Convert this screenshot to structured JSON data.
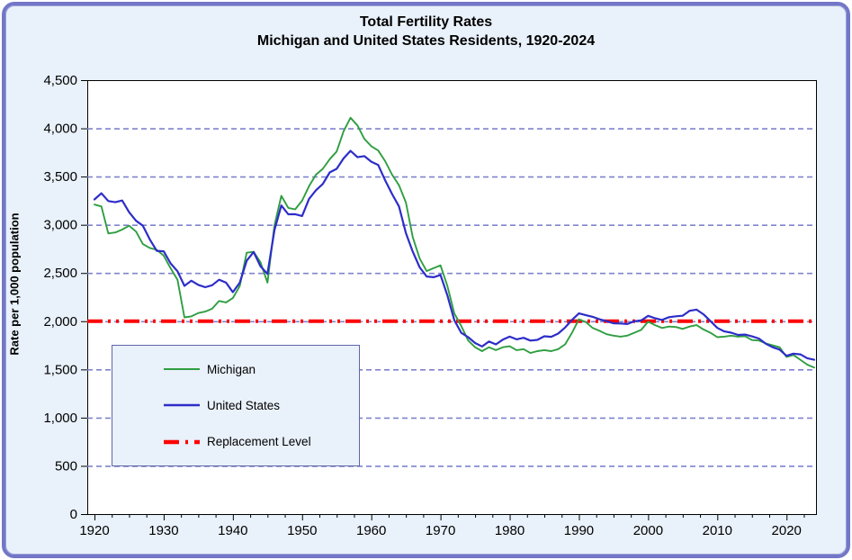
{
  "title": {
    "line1": "Total Fertility Rates",
    "line2": "Michigan and United States Residents, 1920-2024"
  },
  "y_axis": {
    "title": "Rate per 1,000 population",
    "tick_labels": [
      "0",
      "500",
      "1,000",
      "1,500",
      "2,000",
      "2,500",
      "3,000",
      "3,500",
      "4,000",
      "4,500"
    ],
    "min": 0,
    "max": 4500,
    "step": 500
  },
  "x_axis": {
    "tick_labels": [
      "1920",
      "1930",
      "1940",
      "1950",
      "1960",
      "1970",
      "1980",
      "1990",
      "2000",
      "2010",
      "2020"
    ],
    "start_year": 1920,
    "end_year": 2024,
    "major_tick_step_years": 10,
    "minor_tick_step_years": 2.5
  },
  "legend": {
    "items": [
      {
        "label": "Michigan",
        "style": "solid",
        "color": "#2f9e41"
      },
      {
        "label": "United States",
        "style": "solid",
        "color": "#2d2dc8"
      },
      {
        "label": "Replacement Level",
        "style": "dash-dot",
        "color": "#ff0000"
      }
    ]
  },
  "colors": {
    "background": "#e9f1fa",
    "frame_border": "#7277c7",
    "plot_background": "#ffffff",
    "plot_border": "#000000",
    "gridline": "#7f84cd",
    "michigan": "#2f9e41",
    "united_states": "#2d2dc8",
    "replacement": "#ff0000",
    "text": "#000000"
  },
  "chart_data": {
    "type": "line",
    "title": "Total Fertility Rates — Michigan and United States Residents, 1920-2024",
    "ylabel": "Rate per 1,000 population",
    "ylim": [
      0,
      4500
    ],
    "xlim": [
      1920,
      2024
    ],
    "grid": "horizontal dashed every 500",
    "legend_position": "inside lower-left",
    "replacement_level": {
      "label": "Replacement Level",
      "value": 2000,
      "color": "#ff0000"
    },
    "x": [
      1920,
      1921,
      1922,
      1923,
      1924,
      1925,
      1926,
      1927,
      1928,
      1929,
      1930,
      1931,
      1932,
      1933,
      1934,
      1935,
      1936,
      1937,
      1938,
      1939,
      1940,
      1941,
      1942,
      1943,
      1944,
      1945,
      1946,
      1947,
      1948,
      1949,
      1950,
      1951,
      1952,
      1953,
      1954,
      1955,
      1956,
      1957,
      1958,
      1959,
      1960,
      1961,
      1962,
      1963,
      1964,
      1965,
      1966,
      1967,
      1968,
      1969,
      1970,
      1971,
      1972,
      1973,
      1974,
      1975,
      1976,
      1977,
      1978,
      1979,
      1980,
      1981,
      1982,
      1983,
      1984,
      1985,
      1986,
      1987,
      1988,
      1989,
      1990,
      1991,
      1992,
      1993,
      1994,
      1995,
      1996,
      1997,
      1998,
      1999,
      2000,
      2001,
      2002,
      2003,
      2004,
      2005,
      2006,
      2007,
      2008,
      2009,
      2010,
      2011,
      2012,
      2013,
      2014,
      2015,
      2016,
      2017,
      2018,
      2019,
      2020,
      2021,
      2022,
      2023,
      2024
    ],
    "series": [
      {
        "name": "Michigan",
        "color": "#2f9e41",
        "values": [
          3210,
          3190,
          2910,
          2920,
          2950,
          2990,
          2930,
          2800,
          2760,
          2740,
          2680,
          2550,
          2430,
          2040,
          2050,
          2085,
          2100,
          2130,
          2210,
          2195,
          2240,
          2365,
          2710,
          2720,
          2610,
          2400,
          2990,
          3300,
          3175,
          3160,
          3250,
          3400,
          3520,
          3580,
          3680,
          3760,
          3970,
          4110,
          4030,
          3890,
          3815,
          3770,
          3660,
          3520,
          3410,
          3230,
          2870,
          2650,
          2520,
          2550,
          2580,
          2365,
          2080,
          1950,
          1800,
          1730,
          1690,
          1730,
          1700,
          1730,
          1740,
          1700,
          1710,
          1670,
          1690,
          1700,
          1690,
          1710,
          1760,
          1880,
          2020,
          1990,
          1930,
          1900,
          1865,
          1850,
          1840,
          1850,
          1880,
          1910,
          1995,
          1960,
          1930,
          1945,
          1940,
          1920,
          1945,
          1960,
          1915,
          1880,
          1835,
          1840,
          1850,
          1840,
          1845,
          1805,
          1800,
          1770,
          1750,
          1730,
          1630,
          1650,
          1600,
          1550,
          1520
        ]
      },
      {
        "name": "United States",
        "color": "#2d2dc8",
        "values": [
          3263,
          3326,
          3246,
          3234,
          3252,
          3130,
          3042,
          2990,
          2848,
          2730,
          2725,
          2600,
          2518,
          2367,
          2420,
          2377,
          2353,
          2373,
          2430,
          2400,
          2301,
          2399,
          2628,
          2718,
          2568,
          2491,
          2943,
          3200,
          3109,
          3110,
          3091,
          3269,
          3358,
          3424,
          3543,
          3580,
          3689,
          3767,
          3701,
          3712,
          3654,
          3620,
          3461,
          3319,
          3190,
          2913,
          2721,
          2558,
          2464,
          2456,
          2480,
          2267,
          2010,
          1879,
          1835,
          1774,
          1738,
          1790,
          1760,
          1808,
          1840,
          1812,
          1828,
          1799,
          1807,
          1844,
          1838,
          1872,
          1934,
          2014,
          2081,
          2062,
          2046,
          2019,
          2001,
          1978,
          1976,
          1971,
          1999,
          2008,
          2056,
          2031,
          2013,
          2042,
          2051,
          2057,
          2108,
          2120,
          2072,
          2002,
          1931,
          1894,
          1881,
          1858,
          1862,
          1843,
          1821,
          1766,
          1730,
          1706,
          1641,
          1664,
          1656,
          1616,
          1600
        ]
      }
    ]
  }
}
